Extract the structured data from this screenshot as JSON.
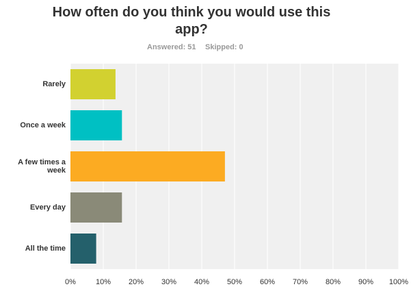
{
  "chart_data": {
    "type": "bar",
    "orientation": "horizontal",
    "title": "How often do you think you would use this app?",
    "answered": "Answered: 51",
    "skipped": "Skipped: 0",
    "categories": [
      "Rarely",
      "Once a week",
      "A few times a week",
      "Every day",
      "All the time"
    ],
    "values": [
      13.73,
      15.69,
      47.06,
      15.69,
      7.84
    ],
    "colors": [
      "#d2d130",
      "#00c0c3",
      "#fcab22",
      "#8a8a78",
      "#24606b"
    ],
    "xlim": [
      0,
      100
    ],
    "xticks": [
      {
        "value": 0,
        "label": "0%"
      },
      {
        "value": 10,
        "label": "10%"
      },
      {
        "value": 20,
        "label": "20%"
      },
      {
        "value": 30,
        "label": "30%"
      },
      {
        "value": 40,
        "label": "40%"
      },
      {
        "value": 50,
        "label": "50%"
      },
      {
        "value": 60,
        "label": "60%"
      },
      {
        "value": 70,
        "label": "70%"
      },
      {
        "value": 80,
        "label": "80%"
      },
      {
        "value": 90,
        "label": "90%"
      },
      {
        "value": 100,
        "label": "100%"
      }
    ],
    "grid": true
  }
}
